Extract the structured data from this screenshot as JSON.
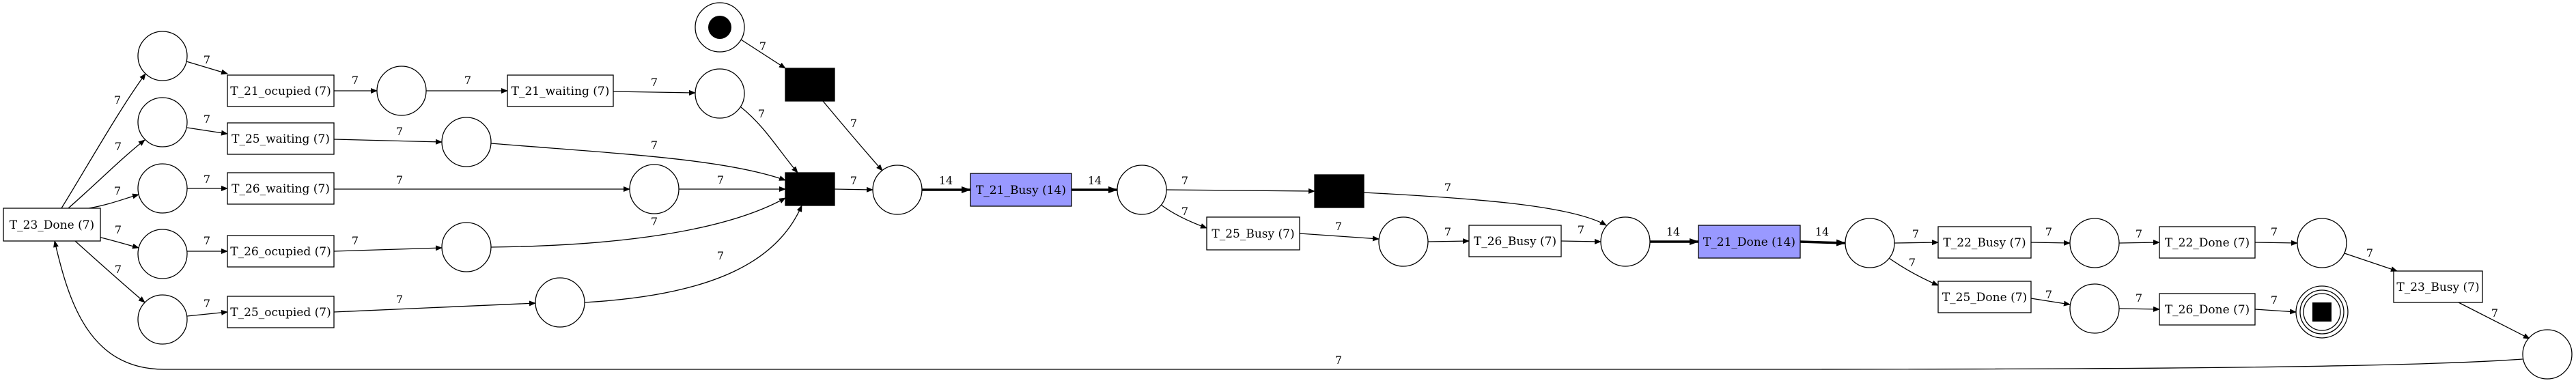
{
  "diagram": {
    "type": "petri-net",
    "colors": {
      "stroke": "#000000",
      "highlight": "#9999ff",
      "silent": "#000000",
      "background": "#ffffff"
    },
    "transitions": [
      {
        "id": "t23done",
        "label": "T_23_Done (7)"
      },
      {
        "id": "t21occ",
        "label": "T_21_ocupied (7)"
      },
      {
        "id": "t25wait",
        "label": "T_25_waiting (7)"
      },
      {
        "id": "t26wait",
        "label": "T_26_waiting (7)"
      },
      {
        "id": "t26occ",
        "label": "T_26_ocupied (7)"
      },
      {
        "id": "t25occ",
        "label": "T_25_ocupied (7)"
      },
      {
        "id": "t21wait",
        "label": "T_21_waiting (7)"
      },
      {
        "id": "t21busy",
        "label": "T_21_Busy (14)",
        "highlight": true
      },
      {
        "id": "t25busy",
        "label": "T_25_Busy (7)"
      },
      {
        "id": "t26busy",
        "label": "T_26_Busy (7)"
      },
      {
        "id": "t21done",
        "label": "T_21_Done (14)",
        "highlight": true
      },
      {
        "id": "t22busy",
        "label": "T_22_Busy (7)"
      },
      {
        "id": "t25done",
        "label": "T_25_Done (7)"
      },
      {
        "id": "t22done",
        "label": "T_22_Done (7)"
      },
      {
        "id": "t26done",
        "label": "T_26_Done (7)"
      },
      {
        "id": "t23busy",
        "label": "T_23_Busy (7)"
      },
      {
        "id": "sil1",
        "silent": true
      },
      {
        "id": "sil2",
        "silent": true
      },
      {
        "id": "sil3",
        "silent": true
      }
    ],
    "places": [
      {
        "id": "start",
        "kind": "source"
      },
      {
        "id": "end",
        "kind": "sink"
      },
      {
        "id": "p_a"
      },
      {
        "id": "p_b"
      },
      {
        "id": "p_c"
      },
      {
        "id": "p_d"
      },
      {
        "id": "p_e"
      },
      {
        "id": "p_f"
      },
      {
        "id": "p_g"
      },
      {
        "id": "p_h"
      },
      {
        "id": "p_i"
      },
      {
        "id": "p_j"
      },
      {
        "id": "p_k"
      },
      {
        "id": "p_l"
      },
      {
        "id": "p_m"
      },
      {
        "id": "p_n"
      },
      {
        "id": "p_o"
      },
      {
        "id": "p_p"
      },
      {
        "id": "p_q"
      },
      {
        "id": "p_r"
      },
      {
        "id": "p_s"
      },
      {
        "id": "p_t"
      }
    ],
    "arcs": [
      {
        "from": "start",
        "to": "sil1",
        "label": "7"
      },
      {
        "from": "t23done",
        "to": "p_a",
        "label": "7"
      },
      {
        "from": "t23done",
        "to": "p_b",
        "label": "7"
      },
      {
        "from": "t23done",
        "to": "p_c",
        "label": "7"
      },
      {
        "from": "t23done",
        "to": "p_d",
        "label": "7"
      },
      {
        "from": "t23done",
        "to": "p_e",
        "label": "7"
      },
      {
        "from": "p_a",
        "to": "t21occ",
        "label": "7"
      },
      {
        "from": "p_b",
        "to": "t25wait",
        "label": "7"
      },
      {
        "from": "p_c",
        "to": "t26wait",
        "label": "7"
      },
      {
        "from": "p_d",
        "to": "t26occ",
        "label": "7"
      },
      {
        "from": "p_e",
        "to": "t25occ",
        "label": "7"
      },
      {
        "from": "t21occ",
        "to": "p_f",
        "label": "7"
      },
      {
        "from": "p_f",
        "to": "t21wait",
        "label": "7"
      },
      {
        "from": "t21wait",
        "to": "p_g",
        "label": "7"
      },
      {
        "from": "t25wait",
        "to": "p_h",
        "label": "7"
      },
      {
        "from": "t26wait",
        "to": "p_i",
        "label": "7"
      },
      {
        "from": "t26occ",
        "to": "p_j",
        "label": "7"
      },
      {
        "from": "t25occ",
        "to": "p_k",
        "label": "7"
      },
      {
        "from": "p_g",
        "to": "sil2",
        "label": "7"
      },
      {
        "from": "p_h",
        "to": "sil2",
        "label": "7"
      },
      {
        "from": "p_i",
        "to": "sil2",
        "label": "7"
      },
      {
        "from": "p_j",
        "to": "sil2",
        "label": "7"
      },
      {
        "from": "p_k",
        "to": "sil2",
        "label": "7"
      },
      {
        "from": "sil1",
        "to": "p_l",
        "label": "7"
      },
      {
        "from": "sil2",
        "to": "p_l",
        "label": "7"
      },
      {
        "from": "p_l",
        "to": "t21busy",
        "label": "14"
      },
      {
        "from": "t21busy",
        "to": "p_m",
        "label": "14"
      },
      {
        "from": "p_m",
        "to": "sil3",
        "label": "7"
      },
      {
        "from": "p_m",
        "to": "t25busy",
        "label": "7"
      },
      {
        "from": "t25busy",
        "to": "p_n",
        "label": "7"
      },
      {
        "from": "p_n",
        "to": "t26busy",
        "label": "7"
      },
      {
        "from": "sil3",
        "to": "p_o",
        "label": "7"
      },
      {
        "from": "t26busy",
        "to": "p_o",
        "label": "7"
      },
      {
        "from": "p_o",
        "to": "t21done",
        "label": "14"
      },
      {
        "from": "t21done",
        "to": "p_p",
        "label": "14"
      },
      {
        "from": "p_p",
        "to": "t22busy",
        "label": "7"
      },
      {
        "from": "p_p",
        "to": "t25done",
        "label": "7"
      },
      {
        "from": "t22busy",
        "to": "p_q",
        "label": "7"
      },
      {
        "from": "t25done",
        "to": "p_r",
        "label": "7"
      },
      {
        "from": "p_q",
        "to": "t22done",
        "label": "7"
      },
      {
        "from": "p_r",
        "to": "t26done",
        "label": "7"
      },
      {
        "from": "t22done",
        "to": "p_s",
        "label": "7"
      },
      {
        "from": "t26done",
        "to": "end",
        "label": "7"
      },
      {
        "from": "p_s",
        "to": "t23busy",
        "label": "7"
      },
      {
        "from": "t23busy",
        "to": "p_t",
        "label": "7"
      },
      {
        "from": "p_t",
        "to": "t23done",
        "label": "7"
      }
    ]
  }
}
